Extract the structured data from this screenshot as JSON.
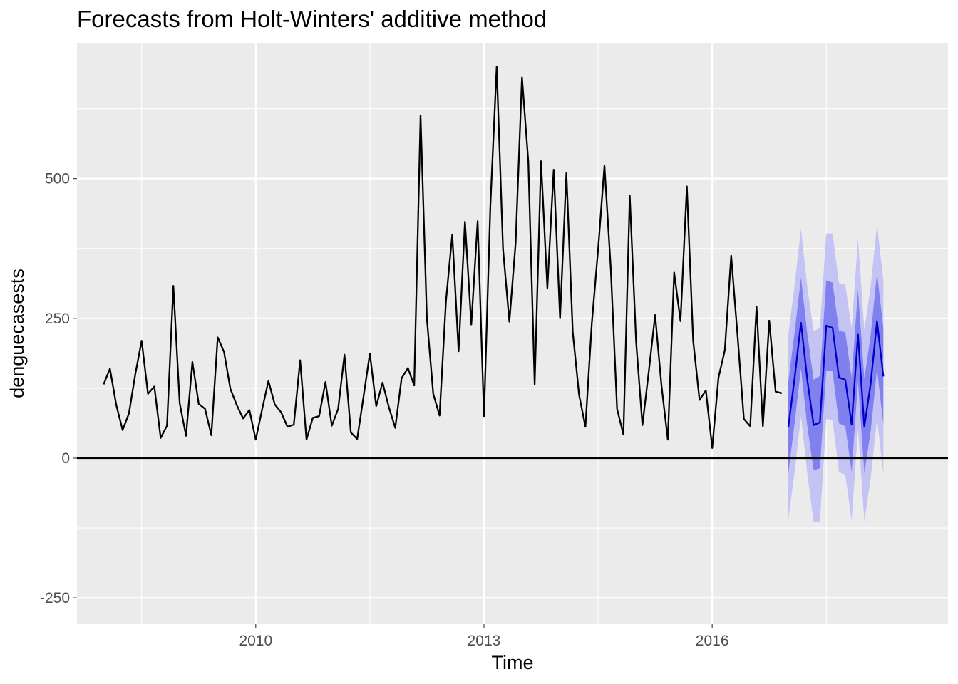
{
  "chart_data": {
    "type": "line",
    "title": "Forecasts from Holt-Winters' additive method",
    "xlabel": "Time",
    "ylabel": "denguecasests",
    "xlim": [
      2007.65,
      2019.1
    ],
    "ylim": [
      -297,
      743
    ],
    "x_ticks": [
      {
        "value": 2010,
        "label": "2010"
      },
      {
        "value": 2013,
        "label": "2013"
      },
      {
        "value": 2016,
        "label": "2016"
      }
    ],
    "y_ticks": [
      {
        "value": -250,
        "label": "-250"
      },
      {
        "value": 0,
        "label": "0"
      },
      {
        "value": 250,
        "label": "250"
      },
      {
        "value": 500,
        "label": "500"
      }
    ],
    "grid": true,
    "legend": "none",
    "reference_line": {
      "y": 0,
      "color": "#000000"
    },
    "colors": {
      "panel_background": "#ebebeb",
      "grid": "#ffffff",
      "observed": "#000000",
      "forecast": "#0000cc",
      "band_80": "#8080ee",
      "band_95": "#c4c4f4"
    },
    "series": [
      {
        "role": "observed",
        "start": 2008,
        "frequency": 12,
        "values": [
          132,
          160,
          95,
          50,
          80,
          150,
          210,
          115,
          128,
          36,
          58,
          308,
          98,
          40,
          172,
          97,
          88,
          41,
          216,
          190,
          124,
          95,
          71,
          86,
          33,
          87,
          138,
          96,
          82,
          56,
          60,
          175,
          33,
          72,
          75,
          136,
          58,
          88,
          185,
          46,
          34,
          110,
          187,
          93,
          135,
          91,
          54,
          143,
          161,
          130,
          613,
          250,
          115,
          76,
          280,
          400,
          191,
          423,
          239,
          424,
          75,
          450,
          700,
          374,
          244,
          385,
          681,
          530,
          132,
          531,
          304,
          516,
          250,
          510,
          226,
          113,
          56,
          240,
          373,
          523,
          339,
          88,
          42,
          470,
          209,
          59,
          155,
          256,
          130,
          33,
          332,
          245,
          486,
          210,
          104,
          121,
          18,
          144,
          193,
          362,
          220,
          70,
          57,
          271,
          57,
          246,
          119,
          116
        ]
      },
      {
        "role": "forecast",
        "start": 2017,
        "frequency": 12,
        "values": [
          55,
          143,
          242,
          140,
          59,
          64,
          237,
          233,
          144,
          140,
          60,
          221,
          56,
          133,
          245,
          146
        ],
        "lo80": [
          -28,
          63,
          160,
          57,
          -22,
          -18,
          157,
          155,
          62,
          57,
          -25,
          138,
          -27,
          48,
          159,
          61
        ],
        "hi80": [
          135,
          225,
          323,
          223,
          140,
          147,
          318,
          314,
          228,
          225,
          143,
          302,
          142,
          220,
          331,
          233
        ],
        "lo95": [
          -110,
          -25,
          75,
          -28,
          -115,
          -113,
          70,
          68,
          -25,
          -30,
          -112,
          52,
          -113,
          -37,
          70,
          -28
        ],
        "hi95": [
          220,
          310,
          410,
          307,
          227,
          233,
          402,
          402,
          313,
          310,
          231,
          392,
          229,
          307,
          418,
          318
        ]
      }
    ]
  }
}
